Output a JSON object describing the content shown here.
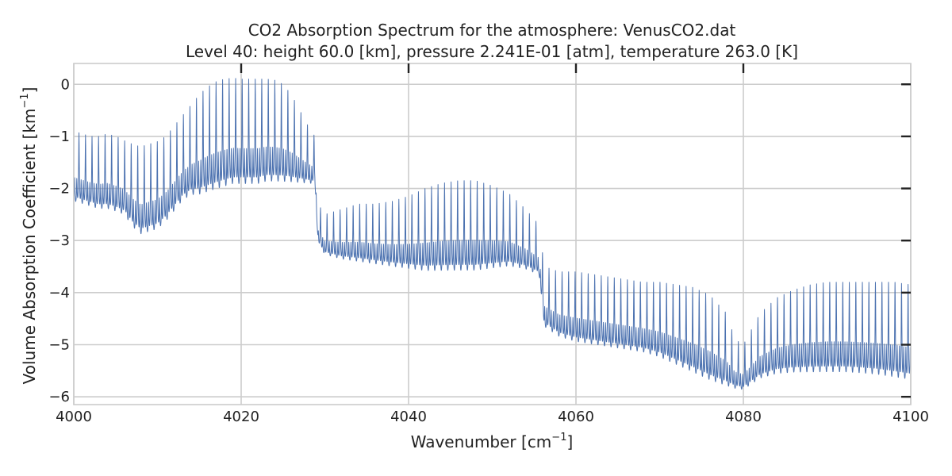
{
  "chart_data": {
    "type": "line",
    "title": "CO2 Absorption Spectrum for the atmosphere: VenusCO2.dat",
    "subtitle": "Level 40: height 60.0 [km], pressure 2.241E-01 [atm], temperature 263.0 [K]",
    "xlabel": "Wavenumber [cm",
    "xlabel_sup": "−1",
    "xlabel_end": "]",
    "ylabel": "Volume Absorption Coefficient [km",
    "ylabel_sup": "−1",
    "ylabel_end": "]",
    "xlim": [
      4000,
      4100
    ],
    "ylim": [
      -6.15,
      0.4
    ],
    "xticks": [
      4000,
      4020,
      4040,
      4060,
      4080,
      4100
    ],
    "xtick_labels": [
      "4000",
      "4020",
      "4040",
      "4060",
      "4080",
      "4100"
    ],
    "yticks": [
      0,
      -1,
      -2,
      -3,
      -4,
      -5,
      -6
    ],
    "ytick_labels": [
      "0",
      "−1",
      "−2",
      "−3",
      "−4",
      "−5",
      "−6"
    ],
    "grid": true,
    "series": [
      {
        "name": "VenusCO2.dat level 40",
        "color": "#4c72b0",
        "envelope": {
          "x": [
            4000,
            4001,
            4002,
            4003,
            4004,
            4005,
            4005.8,
            4006.2,
            4007,
            4008,
            4009,
            4010,
            4011,
            4012,
            4013,
            4014,
            4015,
            4016,
            4017,
            4018,
            4019,
            4020,
            4021,
            4022,
            4023,
            4024,
            4025,
            4026,
            4027,
            4028,
            4028.8,
            4029.2,
            4030,
            4032,
            4034,
            4036,
            4038,
            4040,
            4042,
            4044,
            4046,
            4048,
            4050,
            4052,
            4054,
            4055.6,
            4056.2,
            4058,
            4060,
            4062,
            4064,
            4066,
            4068,
            4070,
            4072,
            4074,
            4076,
            4078,
            4079,
            4080,
            4081,
            4082,
            4084,
            4086,
            4088,
            4090,
            4092,
            4094,
            4096,
            4098,
            4100
          ],
          "peak": [
            -0.9,
            -0.95,
            -1.0,
            -1.0,
            -0.95,
            -1.0,
            -1.05,
            -1.1,
            -1.15,
            -1.2,
            -1.15,
            -1.1,
            -1.0,
            -0.8,
            -0.6,
            -0.4,
            -0.2,
            -0.05,
            0.05,
            0.1,
            0.12,
            0.1,
            0.1,
            0.1,
            0.1,
            0.08,
            0.0,
            -0.2,
            -0.5,
            -0.8,
            -1.0,
            -2.3,
            -2.5,
            -2.4,
            -2.3,
            -2.3,
            -2.25,
            -2.15,
            -2.0,
            -1.9,
            -1.85,
            -1.85,
            -1.95,
            -2.1,
            -2.4,
            -2.7,
            -3.5,
            -3.6,
            -3.6,
            -3.65,
            -3.7,
            -3.75,
            -3.8,
            -3.8,
            -3.85,
            -3.9,
            -4.05,
            -4.4,
            -4.9,
            -5.0,
            -4.7,
            -4.4,
            -4.1,
            -3.95,
            -3.85,
            -3.8,
            -3.8,
            -3.8,
            -3.8,
            -3.8,
            -3.85
          ],
          "valley": [
            -2.3,
            -2.35,
            -2.4,
            -2.45,
            -2.45,
            -2.5,
            -2.55,
            -2.6,
            -2.8,
            -2.95,
            -2.9,
            -2.85,
            -2.7,
            -2.5,
            -2.3,
            -2.2,
            -2.2,
            -2.15,
            -2.1,
            -2.05,
            -2.0,
            -2.0,
            -2.0,
            -2.0,
            -1.95,
            -1.95,
            -1.95,
            -1.95,
            -1.95,
            -1.95,
            -1.95,
            -3.1,
            -3.3,
            -3.4,
            -3.45,
            -3.5,
            -3.55,
            -3.6,
            -3.65,
            -3.65,
            -3.65,
            -3.65,
            -3.6,
            -3.55,
            -3.6,
            -3.7,
            -4.7,
            -4.9,
            -5.0,
            -5.05,
            -5.1,
            -5.15,
            -5.2,
            -5.3,
            -5.45,
            -5.6,
            -5.75,
            -5.85,
            -5.88,
            -5.9,
            -5.8,
            -5.7,
            -5.62,
            -5.6,
            -5.6,
            -5.6,
            -5.6,
            -5.62,
            -5.65,
            -5.7,
            -5.75
          ]
        },
        "line_spacing_cm": 0.78,
        "sub_spacing_cm": 0.26,
        "line_width_cm": 0.04
      }
    ]
  }
}
